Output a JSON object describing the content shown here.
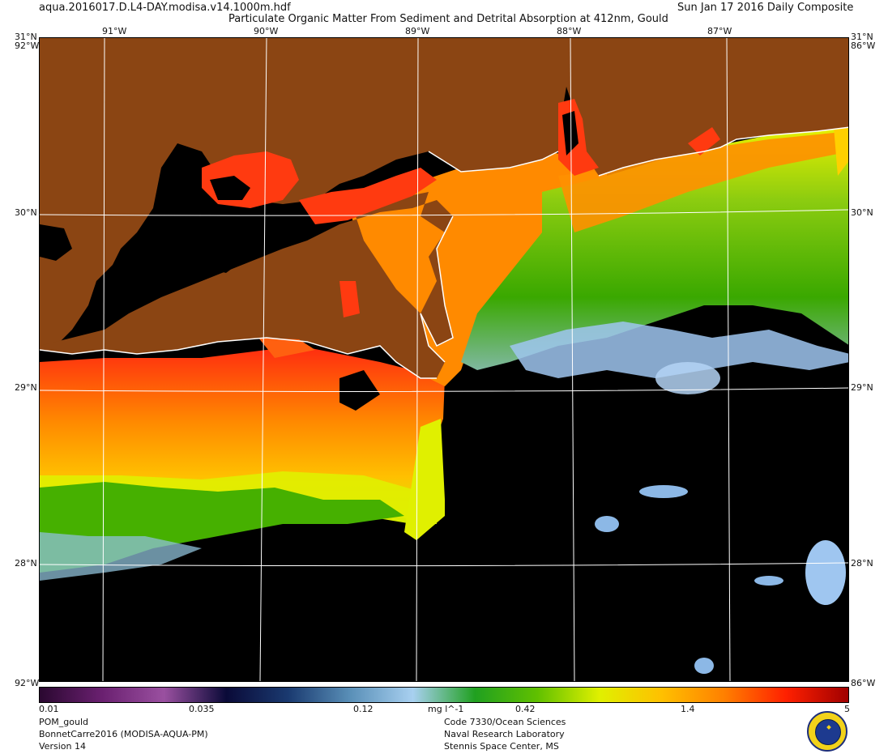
{
  "header": {
    "filename": "aqua.2016017.D.L4-DAY.modisa.v14.1000m.hdf",
    "title": "Particulate Organic Matter From Sediment and Detrital Absorption at 412nm, Gould",
    "date": "Sun Jan 17 2016 Daily Composite"
  },
  "map": {
    "lon_labels": [
      "91°W",
      "90°W",
      "89°W",
      "88°W",
      "87°W"
    ],
    "lat_labels": [
      "30°N",
      "29°N",
      "28°N"
    ],
    "corner_labels": {
      "top_left_lat": "31°N",
      "top_left_lon": "92°W",
      "top_right_lat": "31°N",
      "top_right_lon": "86°W",
      "bottom_left": "92°W",
      "bottom_right": "86°W"
    },
    "colors": {
      "land": "#8b4513",
      "no_data": "#000000",
      "coast": "#ffffff",
      "high": "#ff2a10",
      "mid": "#ffa000",
      "yellow": "#e8f000",
      "green": "#46b000",
      "light_blue": "#9fc6f0"
    }
  },
  "colorbar": {
    "ticks": [
      "0.01",
      "0.035",
      "0.12",
      "0.42",
      "1.4",
      "5"
    ],
    "units": "mg l^-1",
    "gradient": [
      "#2a0830",
      "#6a2070",
      "#9a50a0",
      "#0a0a38",
      "#1a3a70",
      "#5a90b8",
      "#a8d0f0",
      "#20a020",
      "#60c000",
      "#e0f000",
      "#ffc000",
      "#ff8000",
      "#ff2000",
      "#a00000"
    ]
  },
  "footer": {
    "left": [
      "POM_gould",
      "BonnetCarre2016 (MODISA-AQUA-PM)",
      "Version 14"
    ],
    "right": [
      "Code 7330/Ocean Sciences",
      "Naval Research Laboratory",
      "Stennis Space Center, MS"
    ]
  }
}
